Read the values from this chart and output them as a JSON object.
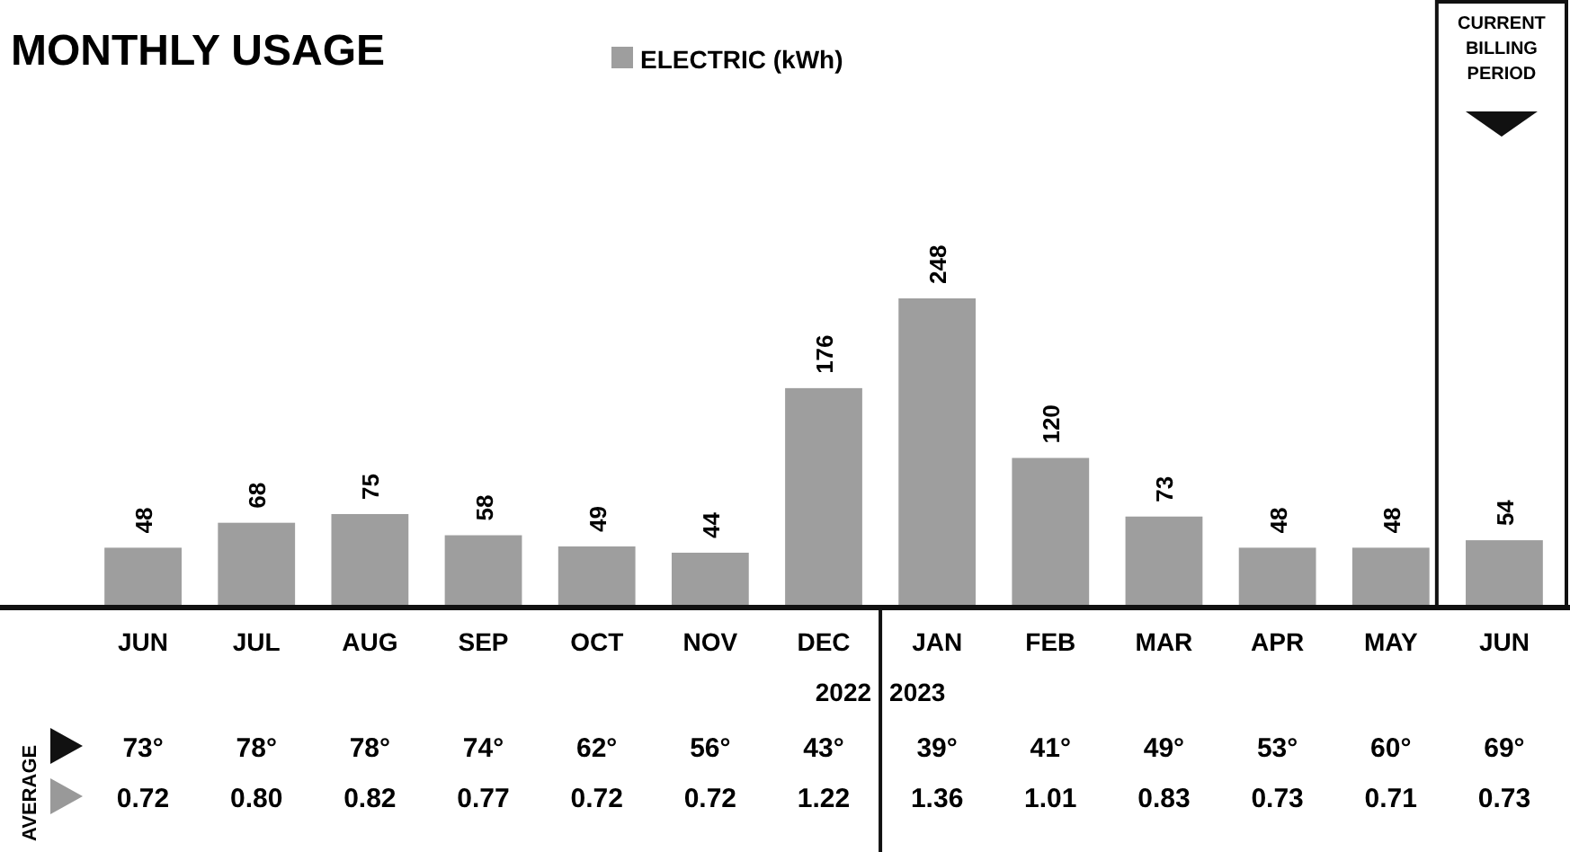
{
  "chart_data": {
    "type": "bar",
    "title": "MONTHLY USAGE",
    "categories": [
      "JUN",
      "JUL",
      "AUG",
      "SEP",
      "OCT",
      "NOV",
      "DEC",
      "JAN",
      "FEB",
      "MAR",
      "APR",
      "MAY",
      "JUN"
    ],
    "series": [
      {
        "name": "ELECTRIC (kWh)",
        "color": "#9e9e9e",
        "values": [
          48,
          68,
          75,
          58,
          49,
          44,
          176,
          248,
          120,
          73,
          48,
          48,
          54
        ]
      }
    ],
    "data_labels": true,
    "legend": "top",
    "annotations": [
      "CURRENT BILLING PERIOD",
      "AVERAGE",
      "2022",
      "2023",
      "73°",
      "78°",
      "78°",
      "74°",
      "62°",
      "56°",
      "43°",
      "39°",
      "41°",
      "49°",
      "53°",
      "60°",
      "69°",
      "0.72",
      "0.80",
      "0.82",
      "0.77",
      "0.72",
      "0.72",
      "1.22",
      "1.36",
      "1.01",
      "0.83",
      "0.73",
      "0.71",
      "0.73"
    ]
  }
}
